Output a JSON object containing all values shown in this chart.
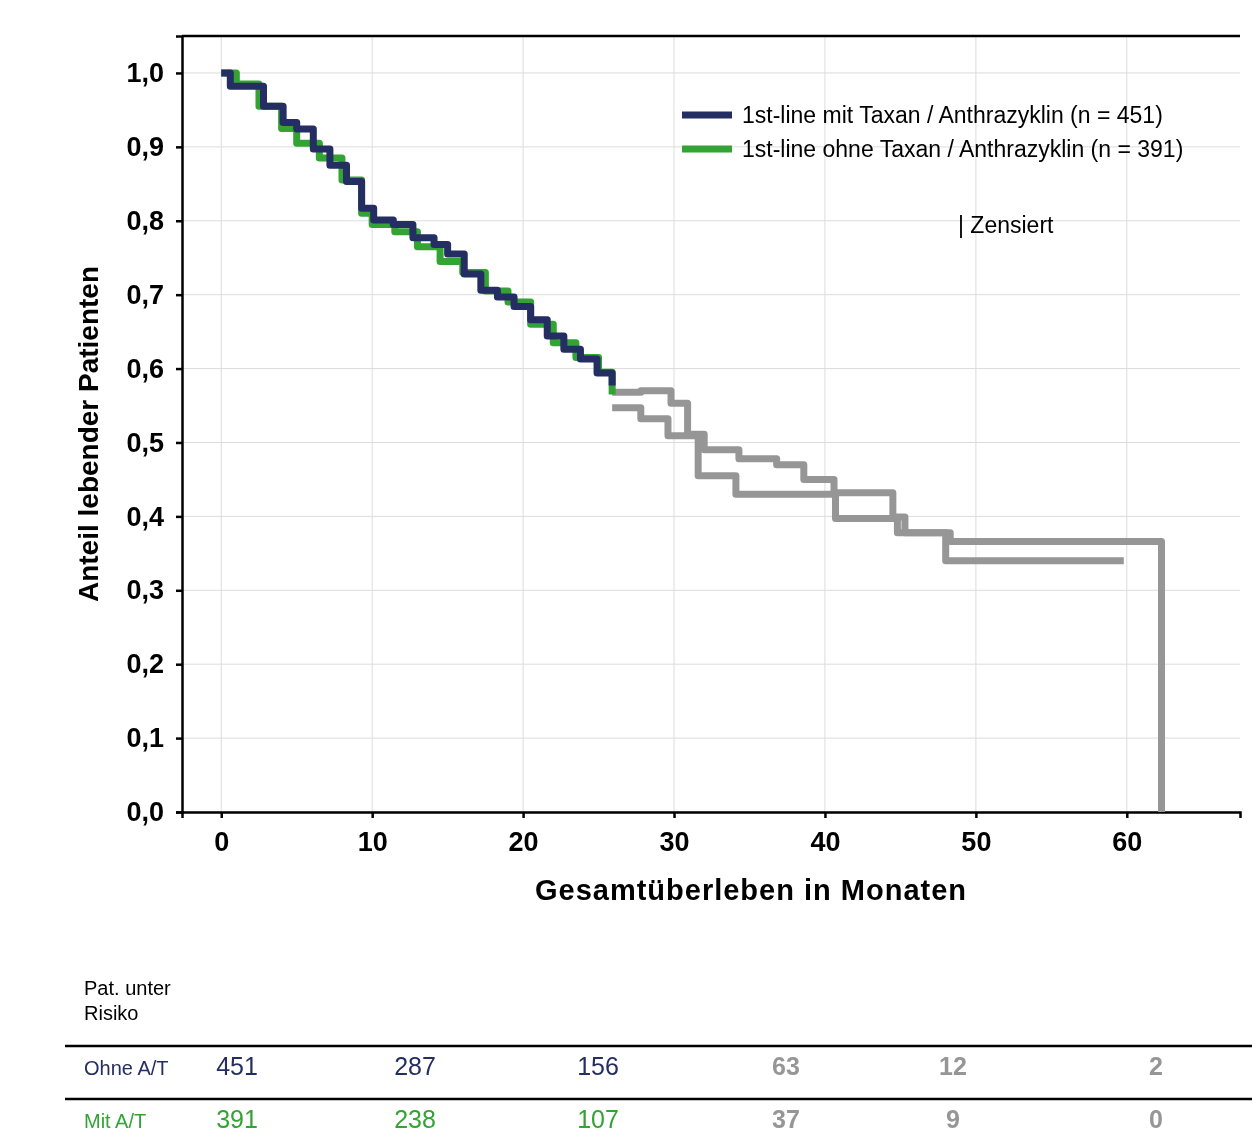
{
  "chart_data": {
    "type": "step",
    "xlabel": "Gesamtüberleben in Monaten",
    "ylabel": "Anteil lebender Patienten",
    "xlim": [
      -2.6,
      67.5
    ],
    "ylim": [
      0,
      1.05
    ],
    "xticks": [
      0,
      10,
      20,
      30,
      40,
      50,
      60
    ],
    "yticks": [
      {
        "value": 0,
        "label": "0,0"
      },
      {
        "value": 0.1,
        "label": "0,1"
      },
      {
        "value": 0.2,
        "label": "0,2"
      },
      {
        "value": 0.3,
        "label": "0,3"
      },
      {
        "value": 0.4,
        "label": "0,4"
      },
      {
        "value": 0.5,
        "label": "0,5"
      },
      {
        "value": 0.6,
        "label": "0,6"
      },
      {
        "value": 0.7,
        "label": "0,7"
      },
      {
        "value": 0.8,
        "label": "0,8"
      },
      {
        "value": 0.9,
        "label": "0,9"
      },
      {
        "value": 1,
        "label": "1,0"
      }
    ],
    "grid": true,
    "legend": "top right",
    "line_style": "solid",
    "series": [
      {
        "name": "1st-line mit Taxan / Anthrazyklin (n = 451)",
        "color": "#252e62",
        "x": [
          0,
          0.6,
          2.8,
          4.1,
          5.0,
          6.1,
          7.2,
          8.3,
          9.3,
          10.1,
          11.4,
          12.7,
          14.1,
          15.0,
          16.1,
          17.2,
          18.3,
          19.4,
          20.5,
          21.6,
          22.7,
          23.8,
          24.9,
          25.9
        ],
        "values": [
          1.0,
          0.982,
          0.955,
          0.933,
          0.924,
          0.897,
          0.875,
          0.853,
          0.817,
          0.801,
          0.795,
          0.777,
          0.768,
          0.755,
          0.728,
          0.706,
          0.697,
          0.684,
          0.666,
          0.644,
          0.626,
          0.613,
          0.594,
          0.577
        ]
      },
      {
        "name": "1st-line ohne Taxan / Anthrazyklin (n = 391)",
        "color": "#33a333",
        "x": [
          0,
          1,
          2.5,
          4,
          5,
          6.5,
          8,
          9.3,
          10,
          11.5,
          13,
          14.5,
          16,
          17.5,
          19,
          20.5,
          22,
          23.5,
          25,
          25.9
        ],
        "values": [
          1.0,
          0.985,
          0.955,
          0.925,
          0.905,
          0.885,
          0.855,
          0.81,
          0.795,
          0.785,
          0.765,
          0.745,
          0.73,
          0.705,
          0.69,
          0.66,
          0.635,
          0.615,
          0.595,
          0.565
        ]
      },
      {
        "color": "#969696",
        "x": [
          25.9,
          27.8,
          29.8,
          30.9,
          32,
          34.3,
          36.8,
          38.6,
          40.6,
          44.5,
          45.3,
          48.3,
          62.3,
          62.3
        ],
        "values": [
          0.568,
          0.57,
          0.553,
          0.511,
          0.49,
          0.478,
          0.47,
          0.45,
          0.432,
          0.399,
          0.378,
          0.366,
          0.366,
          0
        ]
      },
      {
        "color": "#969696",
        "x": [
          25.9,
          27.8,
          29.6,
          31.6,
          34.1,
          40.7,
          44.8,
          48,
          59.8
        ],
        "values": [
          0.547,
          0.532,
          0.509,
          0.455,
          0.43,
          0.397,
          0.378,
          0.34,
          0.34
        ]
      }
    ],
    "annotations": [
      "| Zensiert",
      "Pat. unter Risiko",
      "Ohne A/T",
      "451",
      "287",
      "156",
      "63",
      "12",
      "2",
      "Mit A/T",
      "391",
      "238",
      "107",
      "37",
      "9",
      "0"
    ]
  }
}
